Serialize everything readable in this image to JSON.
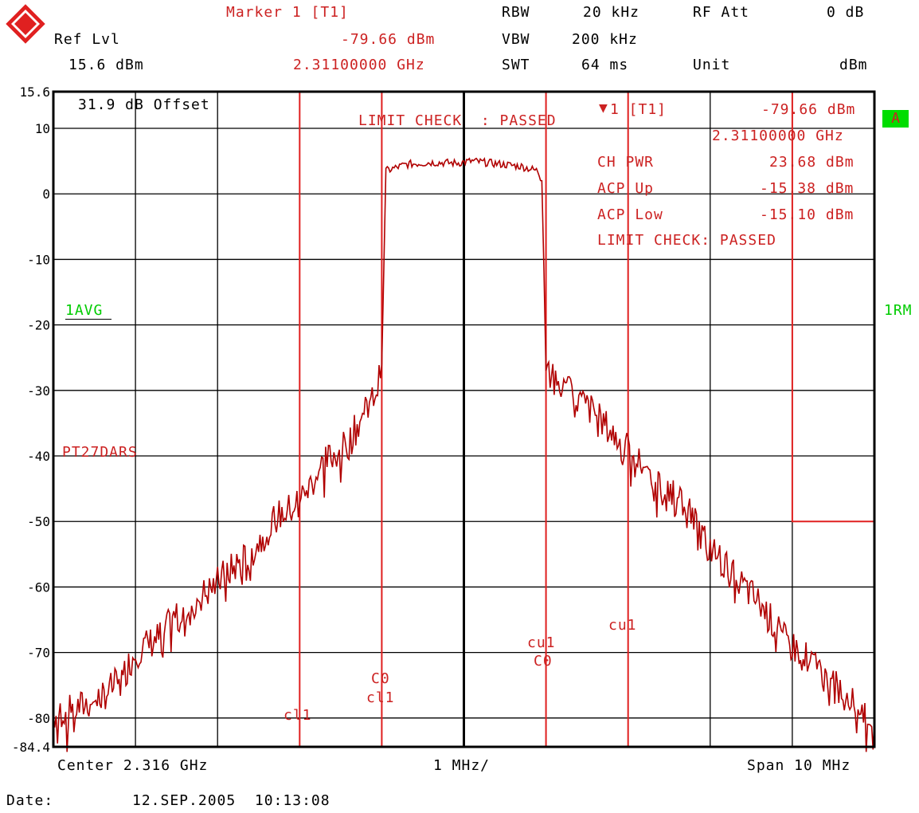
{
  "header": {
    "ref_label": "Ref Lvl",
    "ref_value": "15.6 dBm",
    "marker_title": "Marker 1 [T1]",
    "marker_level": "-79.66 dBm",
    "marker_freq": "2.31100000 GHz",
    "rbw_label": "RBW",
    "rbw_value": "20 kHz",
    "vbw_label": "VBW",
    "vbw_value": "200 kHz",
    "swt_label": "SWT",
    "swt_value": "64 ms",
    "rfatt_label": "RF Att",
    "rfatt_value": "0 dB",
    "unit_label": "Unit",
    "unit_value": "dBm"
  },
  "plot_text": {
    "offset": "31.9 dB Offset",
    "limit_check_center": "LIMIT CHECK  : PASSED",
    "marker_readout": "1 [T1]",
    "marker_readout_level": "-79.66 dBm",
    "marker_readout_freq": "2.31100000 GHz",
    "ch_pwr_label": "CH PWR",
    "ch_pwr_value": "23.68 dBm",
    "acp_up_label": "ACP Up",
    "acp_up_value": "-15.38 dBm",
    "acp_low_label": "ACP Low",
    "acp_low_value": "-15.10 dBm",
    "limit_check_result": "LIMIT CHECK: PASSED",
    "trace_mode": "1AVG",
    "trace_right": "1RM",
    "limit_line_name": "PT27DARS",
    "badge": "A",
    "line_labels": {
      "cl1": "cl1",
      "c0_left": "C0",
      "cl1_left": "cl1",
      "cu1_right": "cu1",
      "c0_right": "C0",
      "cu1": "cu1"
    }
  },
  "footer": {
    "center": "Center 2.316 GHz",
    "div": "1 MHz/",
    "span": "Span 10 MHz",
    "date_label": "Date:",
    "date_value": "12.SEP.2005  10:13:08"
  },
  "colors": {
    "trace": "#b00000",
    "lines": "#e02020",
    "grid": "#000000",
    "accent": "#00cc00"
  },
  "chart_data": {
    "type": "line",
    "title": "",
    "xlabel": "",
    "ylabel": "",
    "x_unit": "MHz",
    "y_unit": "dBm",
    "xlim": [
      2311,
      2321
    ],
    "ylim": [
      -84.4,
      15.6
    ],
    "y_ticks": [
      15.6,
      10,
      0,
      -10,
      -20,
      -30,
      -40,
      -50,
      -60,
      -70,
      -80,
      -84.4
    ],
    "y_tick_labels": [
      "15.6",
      "10",
      "0",
      "-10",
      "-20",
      "-30",
      "-40",
      "-50",
      "-60",
      "-70",
      "-80",
      "-84.4"
    ],
    "x_divisions": 10,
    "grid": true,
    "series": [
      {
        "x": [
          2311.0,
          2311.3,
          2311.6,
          2311.8,
          2312.0,
          2312.3,
          2312.6,
          2312.9,
          2313.1,
          2313.4,
          2313.7,
          2313.9,
          2314.1,
          2314.3,
          2314.6,
          2314.8,
          2314.95,
          2315.0,
          2315.05,
          2315.3,
          2315.6,
          2315.9,
          2316.1,
          2316.4,
          2316.7,
          2316.9,
          2316.95,
          2317.0,
          2317.1,
          2317.3,
          2317.6,
          2317.9,
          2318.1,
          2318.4,
          2318.7,
          2319.0,
          2319.3,
          2319.6,
          2319.9,
          2320.2,
          2320.5,
          2320.8,
          2321.0
        ],
        "y": [
          -79.5,
          -78.5,
          -76.5,
          -74.5,
          -70.0,
          -67.5,
          -63.0,
          -60.5,
          -58.0,
          -55.0,
          -49.5,
          -48.0,
          -45.0,
          -41.0,
          -38.0,
          -33.0,
          -29.5,
          -26.0,
          3.5,
          4.5,
          4.8,
          4.7,
          5.0,
          4.6,
          4.2,
          3.5,
          2.0,
          -25.0,
          -28.5,
          -30.5,
          -33.5,
          -38.0,
          -40.5,
          -44.5,
          -48.0,
          -54.0,
          -58.5,
          -62.5,
          -68.0,
          -71.0,
          -75.0,
          -78.0,
          -80.0
        ]
      }
    ],
    "vertical_lines_mhz": [
      2314.0,
      2315.0,
      2317.0,
      2318.0
    ],
    "limit_line": {
      "x": [
        2320.0,
        2320.0,
        2321.0
      ],
      "y": [
        15.6,
        -50.0,
        -50.0
      ]
    },
    "marker": {
      "x": 2311.0,
      "y": -79.66
    }
  }
}
